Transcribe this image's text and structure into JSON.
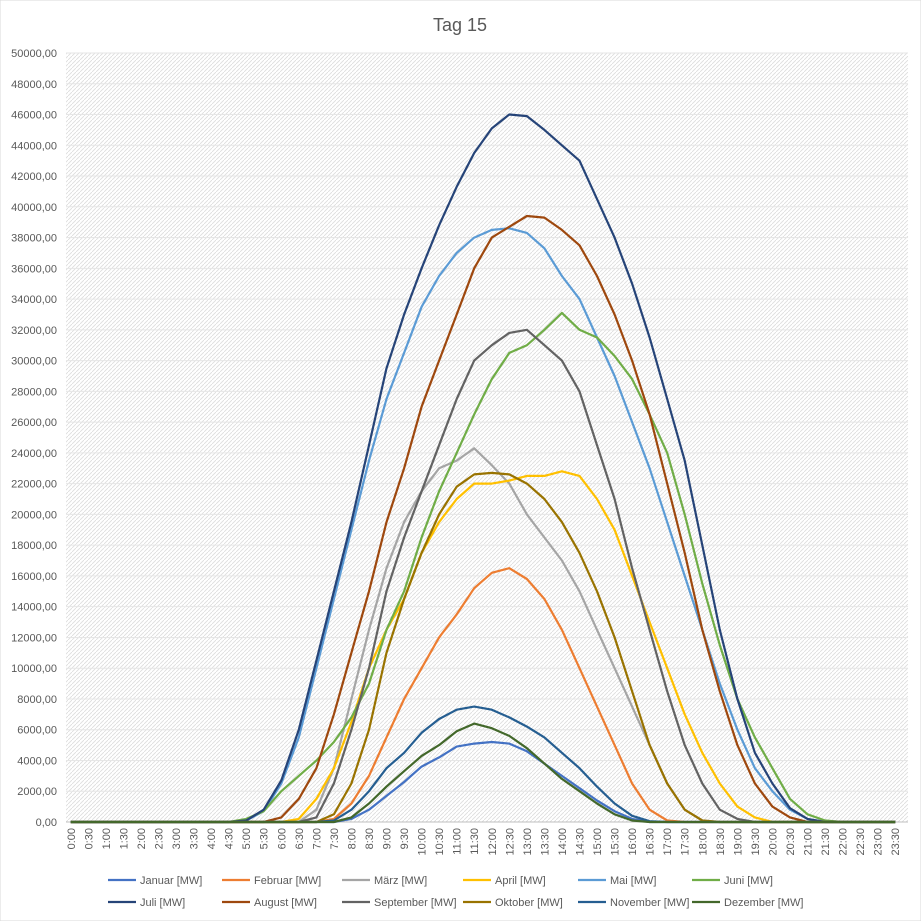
{
  "chart_data": {
    "type": "line",
    "title": "Tag 15",
    "categories": [
      "0:00",
      "0:30",
      "1:00",
      "1:30",
      "2:00",
      "2:30",
      "3:00",
      "3:30",
      "4:00",
      "4:30",
      "5:00",
      "5:30",
      "6:00",
      "6:30",
      "7:00",
      "7:30",
      "8:00",
      "8:30",
      "9:00",
      "9:30",
      "10:00",
      "10:30",
      "11:00",
      "11:30",
      "12:00",
      "12:30",
      "13:00",
      "13:30",
      "14:00",
      "14:30",
      "15:00",
      "15:30",
      "16:00",
      "16:30",
      "17:00",
      "17:30",
      "18:00",
      "18:30",
      "19:00",
      "19:30",
      "20:00",
      "20:30",
      "21:00",
      "21:30",
      "22:00",
      "22:30",
      "23:00",
      "23:30"
    ],
    "ylim": [
      0,
      50000
    ],
    "yticks": [
      {
        "value": 0,
        "label": "0,00"
      },
      {
        "value": 2000,
        "label": "2000,00"
      },
      {
        "value": 4000,
        "label": "4000,00"
      },
      {
        "value": 6000,
        "label": "6000,00"
      },
      {
        "value": 8000,
        "label": "8000,00"
      },
      {
        "value": 10000,
        "label": "10000,00"
      },
      {
        "value": 12000,
        "label": "12000,00"
      },
      {
        "value": 14000,
        "label": "14000,00"
      },
      {
        "value": 16000,
        "label": "16000,00"
      },
      {
        "value": 18000,
        "label": "18000,00"
      },
      {
        "value": 20000,
        "label": "20000,00"
      },
      {
        "value": 22000,
        "label": "22000,00"
      },
      {
        "value": 24000,
        "label": "24000,00"
      },
      {
        "value": 26000,
        "label": "26000,00"
      },
      {
        "value": 28000,
        "label": "28000,00"
      },
      {
        "value": 30000,
        "label": "30000,00"
      },
      {
        "value": 32000,
        "label": "32000,00"
      },
      {
        "value": 34000,
        "label": "34000,00"
      },
      {
        "value": 36000,
        "label": "36000,00"
      },
      {
        "value": 38000,
        "label": "38000,00"
      },
      {
        "value": 40000,
        "label": "40000,00"
      },
      {
        "value": 42000,
        "label": "42000,00"
      },
      {
        "value": 44000,
        "label": "44000,00"
      },
      {
        "value": 46000,
        "label": "46000,00"
      },
      {
        "value": 48000,
        "label": "48000,00"
      },
      {
        "value": 50000,
        "label": "50000,00"
      }
    ],
    "grid": true,
    "legend": "bottom",
    "series": [
      {
        "name": "Januar [MW]",
        "color": "#4472c4",
        "values": [
          0,
          0,
          0,
          0,
          0,
          0,
          0,
          0,
          0,
          0,
          0,
          0,
          0,
          0,
          0,
          0,
          200,
          800,
          1700,
          2600,
          3600,
          4200,
          4900,
          5100,
          5200,
          5100,
          4600,
          3800,
          3000,
          2200,
          1400,
          700,
          200,
          0,
          0,
          0,
          0,
          0,
          0,
          0,
          0,
          0,
          0,
          0,
          0,
          0,
          0,
          0
        ]
      },
      {
        "name": "Februar [MW]",
        "color": "#ed7d31",
        "values": [
          0,
          0,
          0,
          0,
          0,
          0,
          0,
          0,
          0,
          0,
          0,
          0,
          0,
          0,
          0,
          200,
          1200,
          3000,
          5500,
          8000,
          10000,
          12000,
          13500,
          15200,
          16200,
          16500,
          15800,
          14500,
          12500,
          10000,
          7500,
          5000,
          2500,
          800,
          100,
          0,
          0,
          0,
          0,
          0,
          0,
          0,
          0,
          0,
          0,
          0,
          0,
          0
        ]
      },
      {
        "name": "März [MW]",
        "color": "#a5a5a5",
        "values": [
          0,
          0,
          0,
          0,
          0,
          0,
          0,
          0,
          0,
          0,
          0,
          0,
          0,
          0,
          800,
          3500,
          8000,
          12500,
          16500,
          19500,
          21500,
          23000,
          23500,
          24300,
          23200,
          22000,
          20000,
          18500,
          17000,
          15000,
          12500,
          10000,
          7500,
          5000,
          2500,
          800,
          100,
          0,
          0,
          0,
          0,
          0,
          0,
          0,
          0,
          0,
          0,
          0
        ]
      },
      {
        "name": "April [MW]",
        "color": "#ffc000",
        "values": [
          0,
          0,
          0,
          0,
          0,
          0,
          0,
          0,
          0,
          0,
          0,
          0,
          0,
          200,
          1500,
          3500,
          6500,
          10000,
          12500,
          14500,
          17500,
          19500,
          21000,
          22000,
          22000,
          22200,
          22500,
          22500,
          22800,
          22500,
          21000,
          19000,
          16000,
          13000,
          10000,
          7000,
          4500,
          2500,
          1000,
          300,
          0,
          0,
          0,
          0,
          0,
          0,
          0,
          0
        ]
      },
      {
        "name": "Mai [MW]",
        "color": "#5b9bd5",
        "values": [
          0,
          0,
          0,
          0,
          0,
          0,
          0,
          0,
          0,
          0,
          100,
          700,
          2500,
          5500,
          10000,
          14500,
          19000,
          23500,
          27500,
          30500,
          33500,
          35500,
          37000,
          38000,
          38500,
          38600,
          38300,
          37300,
          35500,
          34000,
          31500,
          29000,
          26000,
          23000,
          19500,
          16000,
          12500,
          9000,
          6000,
          3500,
          2000,
          800,
          200,
          0,
          0,
          0,
          0,
          0
        ]
      },
      {
        "name": "Juni [MW]",
        "color": "#70ad47",
        "values": [
          0,
          0,
          0,
          0,
          0,
          0,
          0,
          0,
          0,
          0,
          200,
          700,
          2000,
          3000,
          4000,
          5200,
          6800,
          9000,
          12500,
          15000,
          18500,
          21500,
          24000,
          26500,
          28800,
          30500,
          31000,
          32000,
          33100,
          32000,
          31500,
          30300,
          28800,
          26500,
          24000,
          20000,
          15500,
          11500,
          8000,
          5500,
          3500,
          1500,
          500,
          100,
          0,
          0,
          0,
          0
        ]
      },
      {
        "name": "Juli [MW]",
        "color": "#264478",
        "values": [
          0,
          0,
          0,
          0,
          0,
          0,
          0,
          0,
          0,
          0,
          100,
          800,
          2700,
          6000,
          10500,
          15000,
          19500,
          24500,
          29500,
          33000,
          36000,
          38800,
          41300,
          43500,
          45100,
          46000,
          45900,
          45000,
          44000,
          43000,
          40500,
          38000,
          35000,
          31500,
          27500,
          23500,
          18000,
          12500,
          8000,
          4500,
          2500,
          900,
          200,
          0,
          0,
          0,
          0,
          0
        ]
      },
      {
        "name": "August [MW]",
        "color": "#9e480e",
        "values": [
          0,
          0,
          0,
          0,
          0,
          0,
          0,
          0,
          0,
          0,
          0,
          0,
          300,
          1500,
          3500,
          7000,
          11000,
          15000,
          19500,
          23000,
          27000,
          30000,
          33000,
          36000,
          38000,
          38700,
          39400,
          39300,
          38500,
          37500,
          35500,
          33000,
          30000,
          26500,
          22000,
          17500,
          12500,
          8500,
          5000,
          2500,
          1000,
          300,
          0,
          0,
          0,
          0,
          0,
          0
        ]
      },
      {
        "name": "September [MW]",
        "color": "#636363",
        "values": [
          0,
          0,
          0,
          0,
          0,
          0,
          0,
          0,
          0,
          0,
          0,
          0,
          0,
          0,
          300,
          2500,
          6000,
          10000,
          15000,
          18500,
          21500,
          24500,
          27500,
          30000,
          31000,
          31800,
          32000,
          31000,
          30000,
          28000,
          24500,
          21000,
          16500,
          12500,
          8500,
          5000,
          2500,
          800,
          200,
          0,
          0,
          0,
          0,
          0,
          0,
          0,
          0,
          0
        ]
      },
      {
        "name": "Oktober [MW]",
        "color": "#997300",
        "values": [
          0,
          0,
          0,
          0,
          0,
          0,
          0,
          0,
          0,
          0,
          0,
          0,
          0,
          0,
          0,
          500,
          2500,
          6000,
          11000,
          14500,
          17500,
          20000,
          21800,
          22600,
          22700,
          22600,
          22000,
          21000,
          19500,
          17500,
          15000,
          12000,
          8500,
          5000,
          2500,
          800,
          100,
          0,
          0,
          0,
          0,
          0,
          0,
          0,
          0,
          0,
          0,
          0
        ]
      },
      {
        "name": "November [MW]",
        "color": "#255e91",
        "values": [
          0,
          0,
          0,
          0,
          0,
          0,
          0,
          0,
          0,
          0,
          0,
          0,
          0,
          0,
          0,
          100,
          800,
          2000,
          3500,
          4500,
          5800,
          6700,
          7300,
          7500,
          7300,
          6800,
          6200,
          5500,
          4500,
          3500,
          2300,
          1200,
          400,
          50,
          0,
          0,
          0,
          0,
          0,
          0,
          0,
          0,
          0,
          0,
          0,
          0,
          0,
          0
        ]
      },
      {
        "name": "Dezember [MW]",
        "color": "#43682b",
        "values": [
          0,
          0,
          0,
          0,
          0,
          0,
          0,
          0,
          0,
          0,
          0,
          0,
          0,
          0,
          0,
          0,
          300,
          1200,
          2300,
          3300,
          4300,
          5000,
          5900,
          6400,
          6100,
          5600,
          4800,
          3800,
          2800,
          2000,
          1200,
          500,
          100,
          0,
          0,
          0,
          0,
          0,
          0,
          0,
          0,
          0,
          0,
          0,
          0,
          0,
          0,
          0
        ]
      }
    ]
  }
}
